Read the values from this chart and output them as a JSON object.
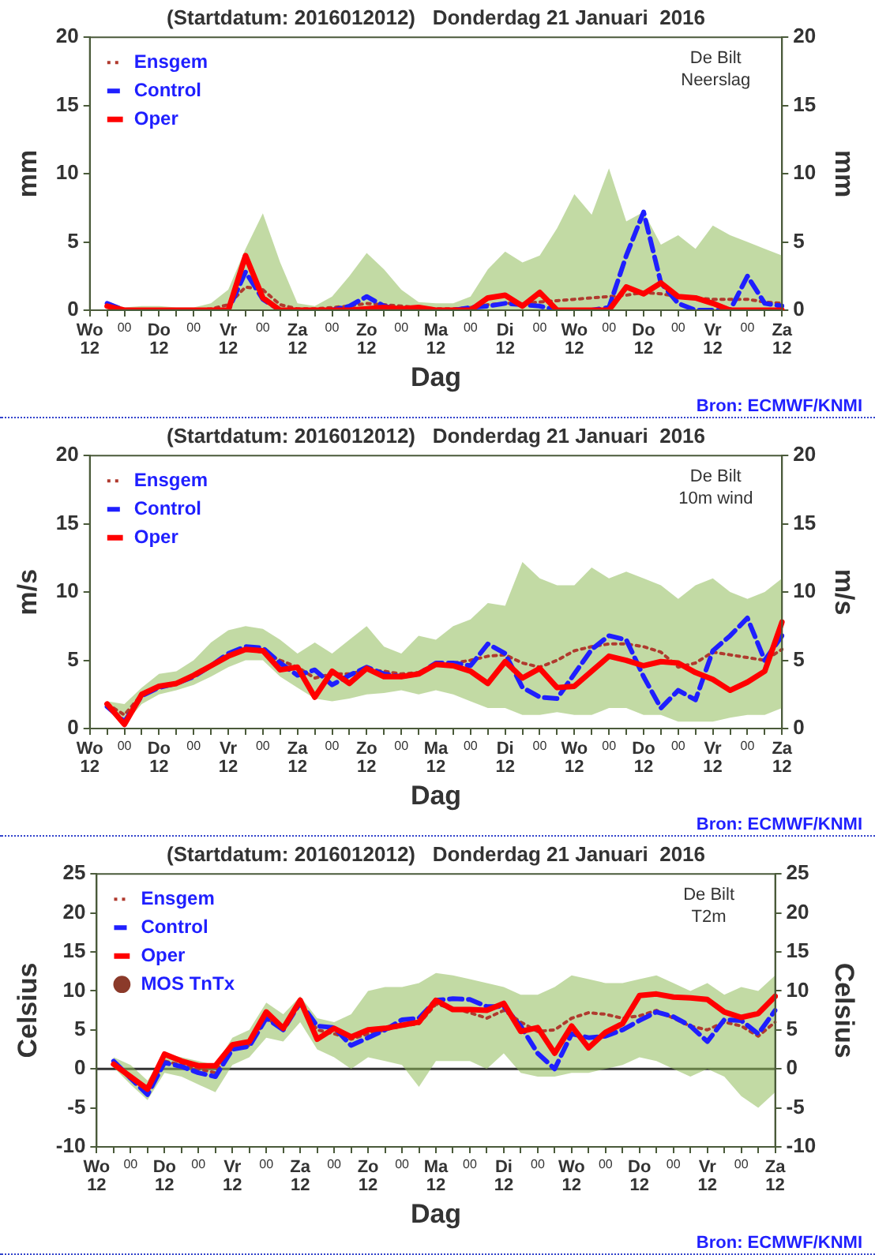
{
  "chart_data": [
    {
      "type": "line",
      "title": "(Startdatum: 2016012012)   Donderdag 21 Januari  2016",
      "xlabel": "Dag",
      "ylabel": "mm",
      "y2label": "mm",
      "legend": "top left",
      "categories": [
        "Wo\n12",
        null,
        "00",
        null,
        "Do\n12",
        null,
        "00",
        null,
        "Vr\n12",
        null,
        "00",
        null,
        "Za\n12",
        null,
        "00",
        null,
        "Zo\n12",
        null,
        "00",
        null,
        "Ma\n12",
        null,
        "00",
        null,
        "Di\n12",
        null,
        "00",
        null,
        "Wo\n12",
        null,
        "00",
        null,
        "Do\n12",
        null,
        "00",
        null,
        "Vr\n12",
        null,
        "00",
        null,
        "Za\n12"
      ],
      "ylim": [
        0,
        20
      ],
      "yticks": [
        0,
        5,
        10,
        15,
        20
      ],
      "y2lim": [
        0,
        20
      ],
      "y2ticks": [
        0,
        5,
        10,
        15,
        20
      ],
      "series": [
        {
          "name": "Ensgem",
          "color": "#b03a2e",
          "line_style": "dotted",
          "values": [
            null,
            null,
            null,
            null,
            null,
            0,
            0,
            0.1,
            0.4,
            1.7,
            1.5,
            0.4,
            0.1,
            0.1,
            0.2,
            0.3,
            0.5,
            0.4,
            0.3,
            0.2,
            0.1,
            0.1,
            0.2,
            0.4,
            0.5,
            0.5,
            0.6,
            0.7,
            0.8,
            0.9,
            1.0,
            1.1,
            1.3,
            1.2,
            1.0,
            0.9,
            0.8,
            0.8,
            0.8,
            0.6,
            0.5
          ],
          "lower": [
            null,
            0,
            0,
            0,
            0,
            0,
            0,
            0,
            0,
            0,
            0,
            0,
            0,
            0,
            0,
            0,
            0,
            0,
            0,
            0,
            0,
            0,
            0,
            0,
            0,
            0,
            0,
            0,
            0,
            0,
            0,
            0,
            0,
            0,
            0,
            0,
            0,
            0,
            0,
            0,
            0
          ],
          "upper": [
            null,
            0.6,
            0.2,
            0.3,
            0.3,
            0.2,
            0.2,
            0.5,
            1.5,
            4.5,
            7.1,
            3.5,
            0.5,
            0.3,
            1.0,
            2.5,
            4.2,
            3.0,
            1.5,
            0.6,
            0.5,
            0.5,
            1.0,
            3.0,
            4.3,
            3.5,
            4.0,
            6.0,
            8.5,
            7.0,
            10.4,
            6.5,
            7.2,
            4.8,
            5.5,
            4.5,
            6.2,
            5.5,
            5.0,
            4.5,
            4.0
          ]
        },
        {
          "name": "Control",
          "color": "#1f1fff",
          "line_style": "dashed",
          "values": [
            null,
            0.5,
            0,
            0,
            0,
            0,
            0,
            0,
            0,
            2.8,
            0.8,
            0,
            0,
            0,
            0,
            0.3,
            1.0,
            0.3,
            0,
            0,
            0,
            0,
            0.2,
            0.3,
            0.5,
            0.4,
            0.3,
            0,
            0,
            0,
            0.2,
            4.0,
            7.2,
            2.0,
            0.5,
            0,
            0,
            0,
            2.5,
            0.5,
            0.3
          ]
        },
        {
          "name": "Oper",
          "color": "#ff0000",
          "line_style": "solid",
          "values": [
            null,
            0.3,
            0,
            0,
            0,
            0,
            0,
            0,
            0,
            4.0,
            0.9,
            0,
            0,
            0,
            0,
            0,
            0.1,
            0.2,
            0.1,
            0.2,
            0,
            0,
            0,
            0.9,
            1.1,
            0.3,
            1.3,
            0,
            0,
            0,
            0,
            1.7,
            1.2,
            2.0,
            1.0,
            0.9,
            0.5,
            0,
            0,
            0,
            0
          ]
        }
      ],
      "annotations": [
        "De Bilt",
        "Neerslag",
        "Bron: ECMWF/KNMI"
      ]
    },
    {
      "type": "line",
      "title": "(Startdatum: 2016012012)   Donderdag 21 Januari  2016",
      "xlabel": "Dag",
      "ylabel": "m/s",
      "y2label": "m/s",
      "legend": "top left",
      "categories": [
        "Wo\n12",
        null,
        "00",
        null,
        "Do\n12",
        null,
        "00",
        null,
        "Vr\n12",
        null,
        "00",
        null,
        "Za\n12",
        null,
        "00",
        null,
        "Zo\n12",
        null,
        "00",
        null,
        "Ma\n12",
        null,
        "00",
        null,
        "Di\n12",
        null,
        "00",
        null,
        "Wo\n12",
        null,
        "00",
        null,
        "Do\n12",
        null,
        "00",
        null,
        "Vr\n12",
        null,
        "00",
        null,
        "Za\n12"
      ],
      "ylim": [
        0,
        20
      ],
      "yticks": [
        0,
        5,
        10,
        15,
        20
      ],
      "y2lim": [
        0,
        20
      ],
      "y2ticks": [
        0,
        5,
        10,
        15,
        20
      ],
      "series": [
        {
          "name": "Ensgem",
          "color": "#b03a2e",
          "line_style": "dotted",
          "values": [
            null,
            1.8,
            1.0,
            2.5,
            3.0,
            3.3,
            3.9,
            4.6,
            5.3,
            5.8,
            5.6,
            5.0,
            4.5,
            3.7,
            4.0,
            4.0,
            4.3,
            4.2,
            4.0,
            4.1,
            4.6,
            4.8,
            5.0,
            5.3,
            5.4,
            4.8,
            4.5,
            5.0,
            5.7,
            6.0,
            6.2,
            6.2,
            6.0,
            5.6,
            4.5,
            4.8,
            5.6,
            5.4,
            5.2,
            5.0,
            5.8
          ],
          "lower": [
            null,
            1.5,
            0.3,
            1.8,
            2.5,
            2.8,
            3.2,
            3.8,
            4.5,
            5.0,
            5.0,
            3.8,
            3.0,
            2.2,
            2.0,
            2.2,
            2.5,
            2.6,
            2.8,
            2.5,
            2.8,
            2.5,
            2.0,
            1.5,
            1.5,
            1.0,
            1.0,
            1.2,
            1.0,
            1.0,
            1.5,
            1.5,
            1.0,
            1.0,
            0.5,
            0.5,
            0.5,
            0.8,
            1.0,
            1.0,
            1.5
          ],
          "upper": [
            null,
            2.0,
            1.8,
            3.0,
            4.0,
            4.2,
            5.0,
            6.3,
            7.2,
            7.5,
            7.3,
            6.5,
            5.5,
            6.3,
            5.5,
            6.5,
            7.5,
            6.0,
            5.5,
            6.8,
            6.5,
            7.5,
            8.0,
            9.2,
            9.0,
            12.2,
            11.0,
            10.5,
            10.5,
            11.8,
            11.0,
            11.5,
            11.0,
            10.5,
            9.5,
            10.5,
            11.0,
            10.0,
            9.5,
            10.0,
            11.0
          ]
        },
        {
          "name": "Control",
          "color": "#1f1fff",
          "line_style": "dashed",
          "values": [
            null,
            1.6,
            0.5,
            2.4,
            3.0,
            3.3,
            3.8,
            4.6,
            5.5,
            6.0,
            5.9,
            4.8,
            3.9,
            4.3,
            3.2,
            3.9,
            4.5,
            4.0,
            3.8,
            4.0,
            4.8,
            4.8,
            4.6,
            6.2,
            5.5,
            3.0,
            2.3,
            2.2,
            4.0,
            5.8,
            6.8,
            6.5,
            3.8,
            1.5,
            2.8,
            2.1,
            5.7,
            6.8,
            8.1,
            5.0,
            6.8
          ]
        },
        {
          "name": "Oper",
          "color": "#ff0000",
          "line_style": "solid",
          "values": [
            null,
            1.8,
            0.3,
            2.5,
            3.1,
            3.3,
            3.9,
            4.6,
            5.3,
            5.8,
            5.7,
            4.3,
            4.5,
            2.3,
            4.2,
            3.3,
            4.4,
            3.8,
            3.8,
            4.0,
            4.7,
            4.6,
            4.2,
            3.3,
            4.9,
            3.7,
            4.4,
            3.0,
            3.1,
            4.2,
            5.3,
            5.0,
            4.6,
            4.9,
            4.8,
            4.1,
            3.6,
            2.8,
            3.4,
            4.2,
            7.8
          ]
        }
      ],
      "annotations": [
        "De Bilt",
        "10m wind",
        "Bron: ECMWF/KNMI"
      ]
    },
    {
      "type": "line",
      "title": "(Startdatum: 2016012012)   Donderdag 21 Januari  2016",
      "xlabel": "Dag",
      "ylabel": "Celsius",
      "y2label": "Celsius",
      "legend": "top left",
      "categories": [
        "Wo\n12",
        null,
        "00",
        null,
        "Do\n12",
        null,
        "00",
        null,
        "Vr\n12",
        null,
        "00",
        null,
        "Za\n12",
        null,
        "00",
        null,
        "Zo\n12",
        null,
        "00",
        null,
        "Ma\n12",
        null,
        "00",
        null,
        "Di\n12",
        null,
        "00",
        null,
        "Wo\n12",
        null,
        "00",
        null,
        "Do\n12",
        null,
        "00",
        null,
        "Vr\n12",
        null,
        "00",
        null,
        "Za\n12"
      ],
      "ylim": [
        -10,
        25
      ],
      "yticks": [
        -10,
        -5,
        0,
        5,
        10,
        15,
        20,
        25
      ],
      "y2lim": [
        -10,
        25
      ],
      "y2ticks": [
        -10,
        -5,
        0,
        5,
        10,
        15,
        20,
        25
      ],
      "ref_lines": [
        {
          "axis": "y",
          "value": 0,
          "color": "#333333"
        }
      ],
      "series": [
        {
          "name": "Ensgem",
          "color": "#b03a2e",
          "line_style": "dotted",
          "values": [
            null,
            0.8,
            -1.0,
            -2.8,
            1.0,
            0.5,
            0.0,
            -0.5,
            2.7,
            3.0,
            6.5,
            5.2,
            8.3,
            5.0,
            4.5,
            3.8,
            4.5,
            5.0,
            5.5,
            5.8,
            8.3,
            7.8,
            7.2,
            6.5,
            7.5,
            6.0,
            4.8,
            5.0,
            6.5,
            7.2,
            7.0,
            6.5,
            6.8,
            7.5,
            6.5,
            5.5,
            5.0,
            6.0,
            5.5,
            4.2,
            6.0
          ],
          "lower": [
            null,
            0.2,
            -2.0,
            -4.0,
            -0.5,
            -1.0,
            -2.0,
            -3.0,
            0.5,
            1.5,
            4.0,
            3.5,
            6.0,
            2.5,
            1.5,
            0.0,
            1.5,
            1.0,
            0.5,
            -2.3,
            1.0,
            1.0,
            1.0,
            0.0,
            2.0,
            -0.5,
            -1.0,
            -1.0,
            -0.5,
            -0.5,
            0.0,
            0.5,
            1.5,
            1.0,
            0.0,
            -1.0,
            0.0,
            -1.0,
            -3.5,
            -5.0,
            -3.0
          ],
          "upper": [
            null,
            1.5,
            0.5,
            -1.5,
            2.0,
            1.5,
            1.0,
            0.5,
            4.0,
            5.0,
            8.5,
            7.0,
            9.3,
            6.5,
            6.0,
            7.0,
            10.0,
            10.5,
            10.5,
            11.0,
            12.3,
            12.0,
            11.5,
            11.0,
            10.5,
            9.5,
            9.5,
            10.5,
            12.0,
            11.5,
            11.0,
            11.0,
            11.5,
            12.0,
            11.0,
            10.0,
            11.0,
            9.5,
            10.5,
            10.0,
            12.0
          ]
        },
        {
          "name": "Control",
          "color": "#1f1fff",
          "line_style": "dashed",
          "values": [
            null,
            1.0,
            -1.2,
            -3.3,
            0.8,
            0.3,
            -0.5,
            -1.0,
            2.5,
            2.9,
            6.5,
            5.0,
            8.5,
            5.5,
            5.3,
            3.0,
            4.0,
            5.0,
            6.3,
            6.5,
            8.8,
            9.0,
            8.9,
            8.0,
            8.0,
            5.5,
            2.0,
            0.0,
            4.5,
            4.0,
            4.2,
            5.0,
            6.2,
            7.3,
            6.7,
            5.5,
            3.5,
            6.3,
            6.2,
            4.5,
            7.5
          ]
        },
        {
          "name": "Oper",
          "color": "#ff0000",
          "line_style": "solid",
          "values": [
            null,
            0.6,
            -1.0,
            -2.6,
            1.9,
            1.0,
            0.4,
            0.4,
            3.1,
            3.5,
            7.3,
            5.2,
            8.8,
            3.8,
            5.2,
            4.1,
            5.0,
            5.2,
            5.6,
            6.0,
            8.8,
            7.6,
            7.6,
            7.5,
            8.4,
            4.8,
            5.3,
            2.0,
            5.5,
            2.7,
            4.7,
            5.8,
            9.4,
            9.6,
            9.2,
            9.1,
            8.9,
            7.3,
            6.6,
            7.1,
            9.3
          ]
        },
        {
          "name": "MOS TnTx",
          "type": "scatter",
          "color": "#8b3a2a",
          "marker": "circle",
          "values": [
            null,
            null,
            null,
            null,
            null,
            null,
            null,
            null,
            null,
            null,
            null,
            null,
            null,
            null,
            null,
            null,
            null,
            null,
            null,
            null,
            null,
            null,
            null,
            null,
            null,
            null,
            null,
            null,
            null,
            null,
            null,
            null,
            null,
            null,
            null,
            null,
            null,
            null,
            null,
            null,
            null
          ]
        }
      ],
      "annotations": [
        "De Bilt",
        "T2m",
        "Bron: ECMWF/KNMI"
      ]
    }
  ]
}
